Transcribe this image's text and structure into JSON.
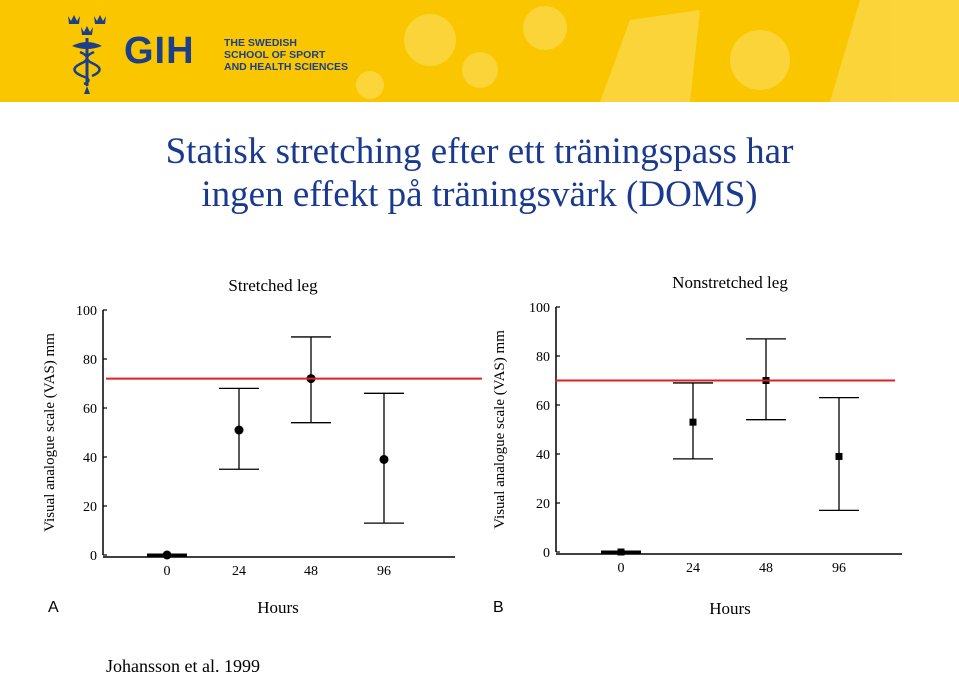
{
  "header": {
    "logo_abbr": "GIH",
    "logo_name": [
      "THE SWEDISH",
      "SCHOOL OF SPORT",
      "AND HEALTH SCIENCES"
    ],
    "logo_icon": "three-crowns-caduceus-icon",
    "brand_colors": {
      "banner": "#f9c600",
      "logo": "#1c3f8c",
      "title": "#1a3a8f"
    }
  },
  "title_lines": [
    "Statisk stretching efter ett träningspass har",
    "ingen effekt på träningsvärk (DOMS)"
  ],
  "citation": "Johansson et al. 1999",
  "reference_line_color": "#e02020",
  "chart_data": [
    {
      "type": "scatter",
      "panel": "A",
      "title": "Stretched leg",
      "xlabel": "Hours",
      "ylabel": "Visual analogue scale (VAS) mm",
      "x_ticks": [
        "0",
        "24",
        "48",
        "96"
      ],
      "y_ticks": [
        "0",
        "20",
        "40",
        "60",
        "80",
        "100"
      ],
      "ylim": [
        0,
        100
      ],
      "marker": "circle",
      "points": [
        {
          "x": "0",
          "mean": 0,
          "low": 0,
          "high": 0
        },
        {
          "x": "24",
          "mean": 51,
          "low": 35,
          "high": 68
        },
        {
          "x": "48",
          "mean": 72,
          "low": 54,
          "high": 89
        },
        {
          "x": "96",
          "mean": 39,
          "low": 13,
          "high": 66
        }
      ],
      "reference_line_y": 72
    },
    {
      "type": "scatter",
      "panel": "B",
      "title": "Nonstretched leg",
      "xlabel": "Hours",
      "ylabel": "Visual analogue scale (VAS) mm",
      "x_ticks": [
        "0",
        "24",
        "48",
        "96"
      ],
      "y_ticks": [
        "0",
        "20",
        "40",
        "60",
        "80",
        "100"
      ],
      "ylim": [
        0,
        100
      ],
      "marker": "square",
      "points": [
        {
          "x": "0",
          "mean": 0,
          "low": 0,
          "high": 0
        },
        {
          "x": "24",
          "mean": 53,
          "low": 38,
          "high": 69
        },
        {
          "x": "48",
          "mean": 70,
          "low": 54,
          "high": 87
        },
        {
          "x": "96",
          "mean": 39,
          "low": 17,
          "high": 63
        }
      ],
      "reference_line_y": 70
    }
  ]
}
